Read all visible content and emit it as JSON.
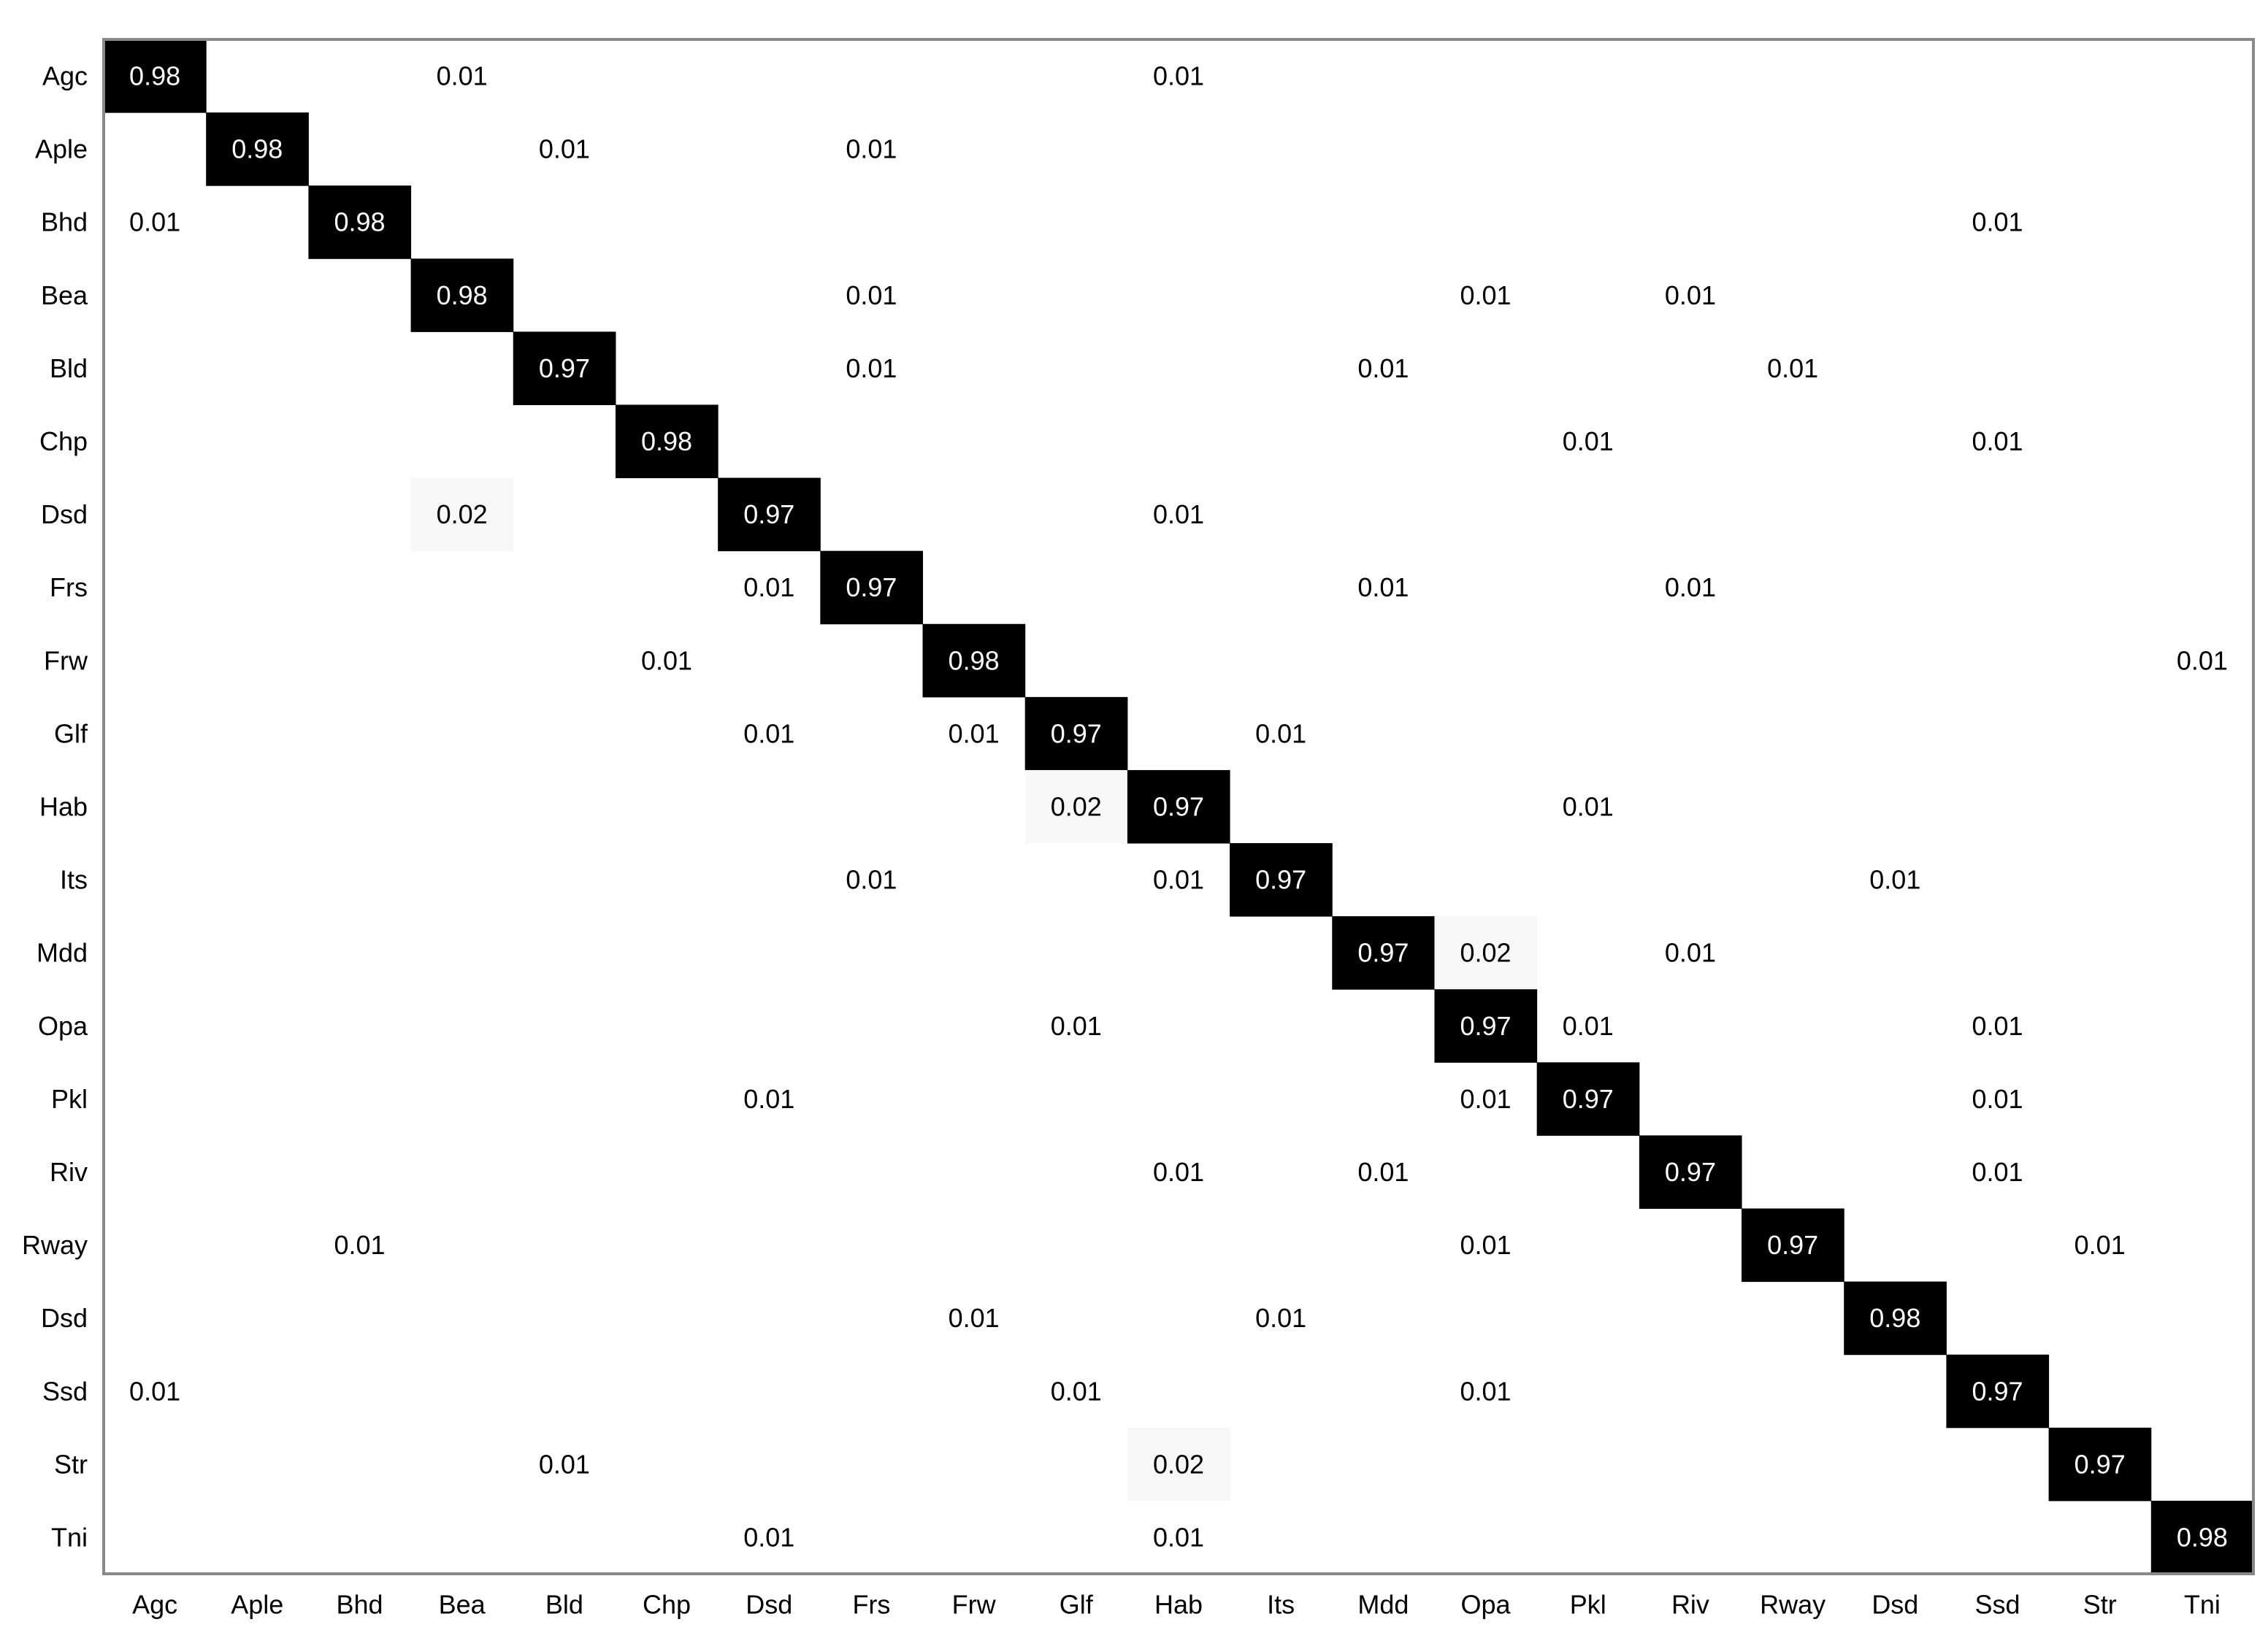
{
  "chart_data": {
    "type": "heatmap",
    "title": "",
    "xlabel": "",
    "ylabel": "",
    "grid": false,
    "legend": "none",
    "row_labels": [
      "Agc",
      "Aple",
      "Bhd",
      "Bea",
      "Bld",
      "Chp",
      "Dsd",
      "Frs",
      "Frw",
      "Glf",
      "Hab",
      "Its",
      "Mdd",
      "Opa",
      "Pkl",
      "Riv",
      "Rway",
      "Dsd",
      "Ssd",
      "Str",
      "Tni"
    ],
    "col_labels": [
      "Agc",
      "Aple",
      "Bhd",
      "Bea",
      "Bld",
      "Chp",
      "Dsd",
      "Frs",
      "Frw",
      "Glf",
      "Hab",
      "Its",
      "Mdd",
      "Opa",
      "Pkl",
      "Riv",
      "Rway",
      "Dsd",
      "Ssd",
      "Str",
      "Tni"
    ],
    "cells": [
      {
        "row": 0,
        "col": 0,
        "value": 0.98,
        "text": "0.98"
      },
      {
        "row": 0,
        "col": 3,
        "value": 0.01,
        "text": "0.01"
      },
      {
        "row": 0,
        "col": 10,
        "value": 0.01,
        "text": "0.01"
      },
      {
        "row": 1,
        "col": 1,
        "value": 0.98,
        "text": "0.98"
      },
      {
        "row": 1,
        "col": 4,
        "value": 0.01,
        "text": "0.01"
      },
      {
        "row": 1,
        "col": 7,
        "value": 0.01,
        "text": "0.01"
      },
      {
        "row": 2,
        "col": 0,
        "value": 0.01,
        "text": "0.01"
      },
      {
        "row": 2,
        "col": 2,
        "value": 0.98,
        "text": "0.98"
      },
      {
        "row": 2,
        "col": 18,
        "value": 0.01,
        "text": "0.01"
      },
      {
        "row": 3,
        "col": 3,
        "value": 0.98,
        "text": "0.98"
      },
      {
        "row": 3,
        "col": 7,
        "value": 0.01,
        "text": "0.01"
      },
      {
        "row": 3,
        "col": 13,
        "value": 0.01,
        "text": "0.01"
      },
      {
        "row": 3,
        "col": 15,
        "value": 0.01,
        "text": "0.01"
      },
      {
        "row": 4,
        "col": 4,
        "value": 0.97,
        "text": "0.97"
      },
      {
        "row": 4,
        "col": 7,
        "value": 0.01,
        "text": "0.01"
      },
      {
        "row": 4,
        "col": 12,
        "value": 0.01,
        "text": "0.01"
      },
      {
        "row": 4,
        "col": 16,
        "value": 0.01,
        "text": "0.01"
      },
      {
        "row": 5,
        "col": 5,
        "value": 0.98,
        "text": "0.98"
      },
      {
        "row": 5,
        "col": 14,
        "value": 0.01,
        "text": "0.01"
      },
      {
        "row": 5,
        "col": 18,
        "value": 0.01,
        "text": "0.01"
      },
      {
        "row": 6,
        "col": 3,
        "value": 0.02,
        "text": "0.02"
      },
      {
        "row": 6,
        "col": 6,
        "value": 0.97,
        "text": "0.97"
      },
      {
        "row": 6,
        "col": 10,
        "value": 0.01,
        "text": "0.01"
      },
      {
        "row": 7,
        "col": 6,
        "value": 0.01,
        "text": "0.01"
      },
      {
        "row": 7,
        "col": 7,
        "value": 0.97,
        "text": "0.97"
      },
      {
        "row": 7,
        "col": 12,
        "value": 0.01,
        "text": "0.01"
      },
      {
        "row": 7,
        "col": 15,
        "value": 0.01,
        "text": "0.01"
      },
      {
        "row": 8,
        "col": 5,
        "value": 0.01,
        "text": "0.01"
      },
      {
        "row": 8,
        "col": 8,
        "value": 0.98,
        "text": "0.98"
      },
      {
        "row": 8,
        "col": 20,
        "value": 0.01,
        "text": "0.01"
      },
      {
        "row": 9,
        "col": 6,
        "value": 0.01,
        "text": "0.01"
      },
      {
        "row": 9,
        "col": 8,
        "value": 0.01,
        "text": "0.01"
      },
      {
        "row": 9,
        "col": 9,
        "value": 0.97,
        "text": "0.97"
      },
      {
        "row": 9,
        "col": 11,
        "value": 0.01,
        "text": "0.01"
      },
      {
        "row": 10,
        "col": 9,
        "value": 0.02,
        "text": "0.02"
      },
      {
        "row": 10,
        "col": 10,
        "value": 0.97,
        "text": "0.97"
      },
      {
        "row": 10,
        "col": 14,
        "value": 0.01,
        "text": "0.01"
      },
      {
        "row": 11,
        "col": 7,
        "value": 0.01,
        "text": "0.01"
      },
      {
        "row": 11,
        "col": 10,
        "value": 0.01,
        "text": "0.01"
      },
      {
        "row": 11,
        "col": 11,
        "value": 0.97,
        "text": "0.97"
      },
      {
        "row": 11,
        "col": 17,
        "value": 0.01,
        "text": "0.01"
      },
      {
        "row": 12,
        "col": 12,
        "value": 0.97,
        "text": "0.97"
      },
      {
        "row": 12,
        "col": 13,
        "value": 0.02,
        "text": "0.02"
      },
      {
        "row": 12,
        "col": 15,
        "value": 0.01,
        "text": "0.01"
      },
      {
        "row": 13,
        "col": 9,
        "value": 0.01,
        "text": "0.01"
      },
      {
        "row": 13,
        "col": 13,
        "value": 0.97,
        "text": "0.97"
      },
      {
        "row": 13,
        "col": 14,
        "value": 0.01,
        "text": "0.01"
      },
      {
        "row": 13,
        "col": 18,
        "value": 0.01,
        "text": "0.01"
      },
      {
        "row": 14,
        "col": 6,
        "value": 0.01,
        "text": "0.01"
      },
      {
        "row": 14,
        "col": 13,
        "value": 0.01,
        "text": "0.01"
      },
      {
        "row": 14,
        "col": 14,
        "value": 0.97,
        "text": "0.97"
      },
      {
        "row": 14,
        "col": 18,
        "value": 0.01,
        "text": "0.01"
      },
      {
        "row": 15,
        "col": 10,
        "value": 0.01,
        "text": "0.01"
      },
      {
        "row": 15,
        "col": 12,
        "value": 0.01,
        "text": "0.01"
      },
      {
        "row": 15,
        "col": 15,
        "value": 0.97,
        "text": "0.97"
      },
      {
        "row": 15,
        "col": 18,
        "value": 0.01,
        "text": "0.01"
      },
      {
        "row": 16,
        "col": 2,
        "value": 0.01,
        "text": "0.01"
      },
      {
        "row": 16,
        "col": 13,
        "value": 0.01,
        "text": "0.01"
      },
      {
        "row": 16,
        "col": 16,
        "value": 0.97,
        "text": "0.97"
      },
      {
        "row": 16,
        "col": 19,
        "value": 0.01,
        "text": "0.01"
      },
      {
        "row": 17,
        "col": 8,
        "value": 0.01,
        "text": "0.01"
      },
      {
        "row": 17,
        "col": 11,
        "value": 0.01,
        "text": "0.01"
      },
      {
        "row": 17,
        "col": 17,
        "value": 0.98,
        "text": "0.98"
      },
      {
        "row": 18,
        "col": 0,
        "value": 0.01,
        "text": "0.01"
      },
      {
        "row": 18,
        "col": 9,
        "value": 0.01,
        "text": "0.01"
      },
      {
        "row": 18,
        "col": 13,
        "value": 0.01,
        "text": "0.01"
      },
      {
        "row": 18,
        "col": 18,
        "value": 0.97,
        "text": "0.97"
      },
      {
        "row": 19,
        "col": 4,
        "value": 0.01,
        "text": "0.01"
      },
      {
        "row": 19,
        "col": 10,
        "value": 0.02,
        "text": "0.02"
      },
      {
        "row": 19,
        "col": 19,
        "value": 0.97,
        "text": "0.97"
      },
      {
        "row": 20,
        "col": 6,
        "value": 0.01,
        "text": "0.01"
      },
      {
        "row": 20,
        "col": 10,
        "value": 0.01,
        "text": "0.01"
      },
      {
        "row": 20,
        "col": 20,
        "value": 0.98,
        "text": "0.98"
      }
    ],
    "colors": {
      "high": "#000000",
      "low_tint": "#f7f7f7",
      "text_on_dark": "#ffffff",
      "text_on_light": "#000000",
      "axis": "#888888"
    }
  }
}
